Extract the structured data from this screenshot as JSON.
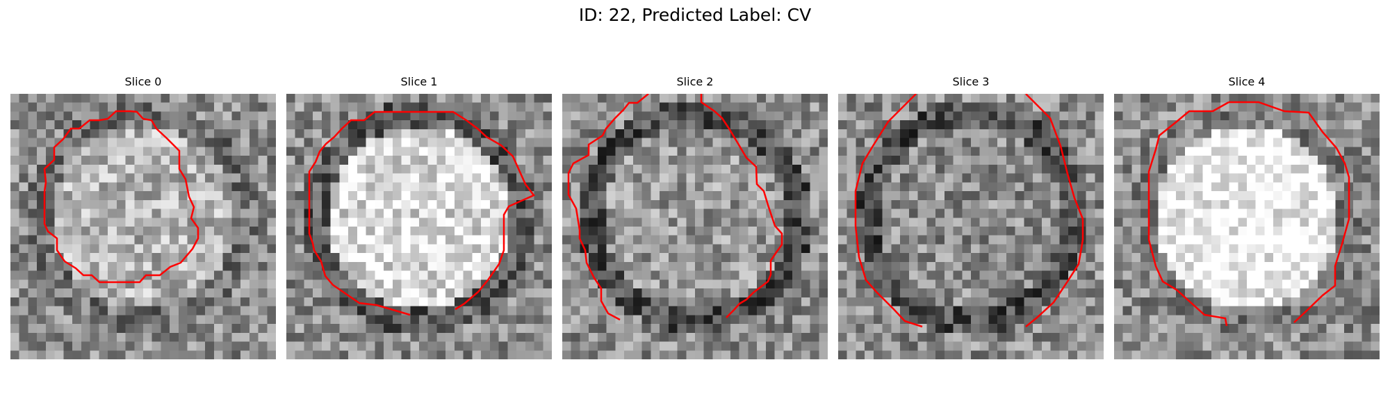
{
  "figure": {
    "title": "ID: 22, Predicted Label: CV"
  },
  "colors": {
    "contour": "#ff0000",
    "colormap": "grayscale"
  },
  "panels": [
    {
      "title": "Slice 0",
      "bright_core": 0.7,
      "dark_ring": 0.45
    },
    {
      "title": "Slice 1",
      "bright_core": 0.85,
      "dark_ring": 0.35
    },
    {
      "title": "Slice 2",
      "bright_core": 0.6,
      "dark_ring": 0.3
    },
    {
      "title": "Slice 3",
      "bright_core": 0.55,
      "dark_ring": 0.3
    },
    {
      "title": "Slice 4",
      "bright_core": 0.95,
      "dark_ring": 0.5
    }
  ]
}
